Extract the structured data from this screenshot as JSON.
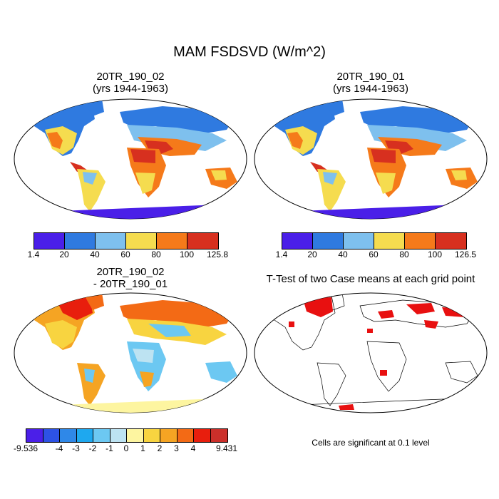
{
  "title": "MAM FSDSVD (W/m^2)",
  "panels": [
    {
      "title_line1": "20TR_190_02",
      "title_line2": "(yrs 1944-1963)"
    },
    {
      "title_line1": "20TR_190_01",
      "title_line2": "(yrs 1944-1963)"
    },
    {
      "title_line1": "20TR_190_02",
      "title_line2": "- 20TR_190_01"
    },
    {
      "title_line1": "T-Test of two Case means at each grid point"
    }
  ],
  "colorbar1": {
    "labels": [
      "1.4",
      "20",
      "40",
      "60",
      "80",
      "100",
      "125.8"
    ],
    "colors": [
      "#4a1fe8",
      "#2f7ae0",
      "#7ec0ee",
      "#f5dc4f",
      "#f57a1a",
      "#d7301f"
    ]
  },
  "colorbar2": {
    "labels": [
      "1.4",
      "20",
      "40",
      "60",
      "80",
      "100",
      "126.5"
    ],
    "colors": [
      "#4a1fe8",
      "#2f7ae0",
      "#7ec0ee",
      "#f5dc4f",
      "#f57a1a",
      "#d7301f"
    ]
  },
  "colorbar3": {
    "labels": [
      "-9.536",
      "-4",
      "-3",
      "-2",
      "-1",
      "0",
      "1",
      "2",
      "3",
      "4",
      "9.431"
    ],
    "colors": [
      "#4b1fe8",
      "#2d52e6",
      "#2f88e8",
      "#1ea8ef",
      "#6cc8f2",
      "#bde3f2",
      "#fdf5a0",
      "#f8d440",
      "#f5a423",
      "#f36a15",
      "#e81e0d",
      "#cc2f2a"
    ]
  },
  "ttest_note": "Cells are significant at 0.1 level"
}
